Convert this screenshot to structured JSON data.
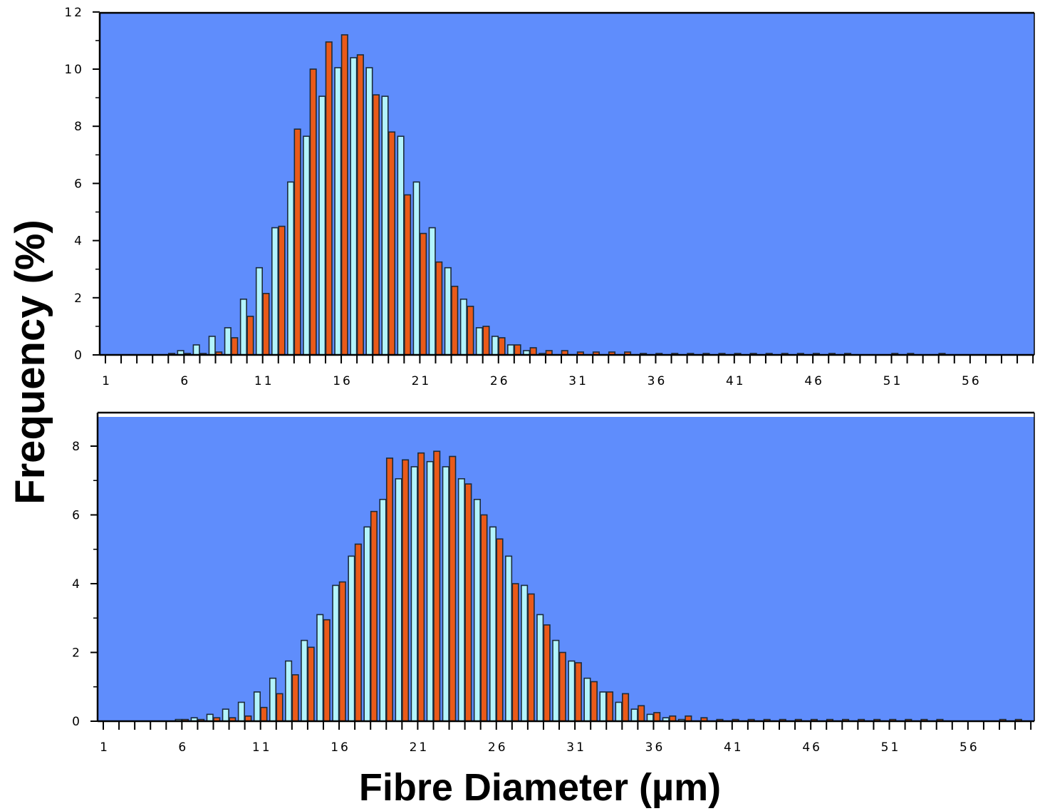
{
  "chart_data": [
    {
      "type": "bar",
      "xlabel": "Fibre Diameter (µm)",
      "ylabel": "Frequency  (%)",
      "xlim": [
        1,
        60
      ],
      "ylim": [
        0,
        12
      ],
      "yticks": [
        0,
        2,
        4,
        6,
        8,
        10,
        12
      ],
      "xticks": [
        1,
        6,
        11,
        16,
        21,
        26,
        31,
        36,
        41,
        46,
        51,
        56
      ],
      "x": [
        5,
        6,
        7,
        8,
        9,
        10,
        11,
        12,
        13,
        14,
        15,
        16,
        17,
        18,
        19,
        20,
        21,
        22,
        23,
        24,
        25,
        26,
        27,
        28,
        29,
        30,
        31,
        32,
        33,
        34,
        35,
        36,
        37,
        38,
        39,
        40,
        41,
        42,
        43,
        44,
        45,
        46,
        47,
        48,
        49,
        50,
        51,
        52,
        53,
        54
      ],
      "grid": false,
      "legend": "none",
      "colors": {
        "plot_bg": "#5f8dfc",
        "series_a": "#b3f4fc",
        "series_b": "#ea5a19"
      },
      "series": [
        {
          "values": [
            0,
            0.15,
            0.35,
            0.65,
            0.95,
            1.95,
            3.05,
            4.45,
            6.05,
            7.65,
            9.05,
            10.05,
            10.4,
            10.05,
            9.05,
            7.65,
            6.05,
            4.45,
            3.05,
            1.95,
            0.95,
            0.65,
            0.35,
            0.15,
            0.05,
            0,
            0,
            0,
            0,
            0,
            0,
            0,
            0,
            0,
            0,
            0,
            0,
            0,
            0,
            0,
            0,
            0,
            0,
            0,
            0,
            0,
            0,
            0,
            0,
            0
          ]
        },
        {
          "values": [
            0.05,
            0.05,
            0.05,
            0.1,
            0.6,
            1.35,
            2.15,
            4.5,
            7.9,
            10,
            10.95,
            11.2,
            10.5,
            9.1,
            7.8,
            5.6,
            4.25,
            3.25,
            2.4,
            1.7,
            1.0,
            0.6,
            0.35,
            0.25,
            0.15,
            0.15,
            0.1,
            0.1,
            0.1,
            0.1,
            0.05,
            0.05,
            0.05,
            0.05,
            0.05,
            0.05,
            0.05,
            0.05,
            0.05,
            0.05,
            0.05,
            0.05,
            0.05,
            0.05,
            0,
            0,
            0.05,
            0.05,
            0,
            0.05
          ]
        }
      ]
    },
    {
      "type": "bar",
      "xlabel": "Fibre Diameter (µm)",
      "ylabel": "Frequency  (%)",
      "xlim": [
        1,
        60
      ],
      "ylim": [
        0,
        8.8
      ],
      "yticks": [
        0,
        2,
        4,
        6,
        8
      ],
      "xticks": [
        1,
        6,
        11,
        16,
        21,
        26,
        31,
        36,
        41,
        46,
        51,
        56
      ],
      "x": [
        6,
        7,
        8,
        9,
        10,
        11,
        12,
        13,
        14,
        15,
        16,
        17,
        18,
        19,
        20,
        21,
        22,
        23,
        24,
        25,
        26,
        27,
        28,
        29,
        30,
        31,
        32,
        33,
        34,
        35,
        36,
        37,
        38,
        39,
        40,
        41,
        42,
        43,
        44,
        45,
        46,
        47,
        48,
        49,
        50,
        51,
        52,
        53,
        54,
        55,
        56,
        57,
        58,
        59
      ],
      "grid": false,
      "legend": "none",
      "colors": {
        "plot_bg": "#5f8dfc",
        "series_a": "#b3f4fc",
        "series_b": "#ea5a19"
      },
      "series": [
        {
          "values": [
            0.05,
            0.1,
            0.2,
            0.35,
            0.55,
            0.85,
            1.25,
            1.75,
            2.35,
            3.1,
            3.95,
            4.8,
            5.65,
            6.45,
            7.05,
            7.4,
            7.55,
            7.4,
            7.05,
            6.45,
            5.65,
            4.8,
            3.95,
            3.1,
            2.35,
            1.75,
            1.25,
            0.85,
            0.55,
            0.35,
            0.2,
            0.1,
            0.05,
            0,
            0,
            0,
            0,
            0,
            0,
            0,
            0,
            0,
            0,
            0,
            0,
            0,
            0,
            0,
            0,
            0,
            0,
            0,
            0,
            0
          ]
        },
        {
          "values": [
            0.05,
            0.05,
            0.1,
            0.1,
            0.15,
            0.4,
            0.8,
            1.35,
            2.15,
            2.95,
            4.05,
            5.15,
            6.1,
            7.65,
            7.6,
            7.8,
            7.85,
            7.7,
            6.9,
            6.0,
            5.3,
            4.0,
            3.7,
            2.8,
            2.0,
            1.7,
            1.15,
            0.85,
            0.8,
            0.45,
            0.25,
            0.15,
            0.15,
            0.1,
            0.05,
            0.05,
            0.05,
            0.05,
            0.05,
            0.05,
            0.05,
            0.05,
            0.05,
            0.05,
            0.05,
            0.05,
            0.05,
            0.05,
            0.05,
            0,
            0,
            0,
            0.05,
            0.05
          ]
        }
      ]
    }
  ]
}
